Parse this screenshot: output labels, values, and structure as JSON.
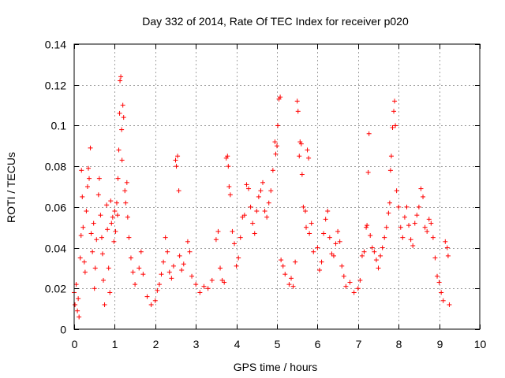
{
  "chart_data": {
    "type": "scatter",
    "title": "Day 332 of 2014, Rate Of TEC Index for receiver p020",
    "xlabel": "GPS time / hours",
    "ylabel": "ROTI / TECUs",
    "xlim": [
      0,
      10
    ],
    "ylim": [
      0,
      0.14
    ],
    "x_ticks": [
      0,
      1,
      2,
      3,
      4,
      5,
      6,
      7,
      8,
      9,
      10
    ],
    "x_tick_labels": [
      "0",
      "1",
      "2",
      "3",
      "4",
      "5",
      "6",
      "7",
      "8",
      "9",
      "10"
    ],
    "y_ticks": [
      0,
      0.02,
      0.04,
      0.06,
      0.08,
      0.1,
      0.12,
      0.14
    ],
    "y_tick_labels": [
      "0",
      "0.02",
      "0.04",
      "0.06",
      "0.08",
      "0.1",
      "0.12",
      "0.14"
    ],
    "grid": true,
    "marker": "+",
    "color": "#ff0000",
    "series": [
      {
        "name": "ROTI",
        "points": [
          [
            0.0,
            0.018
          ],
          [
            0.02,
            0.012
          ],
          [
            0.05,
            0.022
          ],
          [
            0.08,
            0.009
          ],
          [
            0.1,
            0.015
          ],
          [
            0.12,
            0.006
          ],
          [
            0.15,
            0.035
          ],
          [
            0.17,
            0.046
          ],
          [
            0.18,
            0.078
          ],
          [
            0.2,
            0.065
          ],
          [
            0.22,
            0.05
          ],
          [
            0.25,
            0.033
          ],
          [
            0.27,
            0.028
          ],
          [
            0.3,
            0.058
          ],
          [
            0.33,
            0.07
          ],
          [
            0.35,
            0.079
          ],
          [
            0.37,
            0.074
          ],
          [
            0.4,
            0.089
          ],
          [
            0.42,
            0.047
          ],
          [
            0.45,
            0.038
          ],
          [
            0.48,
            0.052
          ],
          [
            0.5,
            0.02
          ],
          [
            0.52,
            0.03
          ],
          [
            0.55,
            0.044
          ],
          [
            0.6,
            0.066
          ],
          [
            0.62,
            0.074
          ],
          [
            0.65,
            0.056
          ],
          [
            0.68,
            0.045
          ],
          [
            0.7,
            0.037
          ],
          [
            0.72,
            0.024
          ],
          [
            0.75,
            0.012
          ],
          [
            0.8,
            0.061
          ],
          [
            0.82,
            0.049
          ],
          [
            0.85,
            0.03
          ],
          [
            0.88,
            0.018
          ],
          [
            0.9,
            0.063
          ],
          [
            0.92,
            0.052
          ],
          [
            0.95,
            0.055
          ],
          [
            0.98,
            0.043
          ],
          [
            1.0,
            0.058
          ],
          [
            1.02,
            0.048
          ],
          [
            1.05,
            0.062
          ],
          [
            1.07,
            0.056
          ],
          [
            1.08,
            0.074
          ],
          [
            1.1,
            0.088
          ],
          [
            1.12,
            0.106
          ],
          [
            1.13,
            0.122
          ],
          [
            1.15,
            0.124
          ],
          [
            1.17,
            0.098
          ],
          [
            1.18,
            0.083
          ],
          [
            1.2,
            0.11
          ],
          [
            1.22,
            0.104
          ],
          [
            1.25,
            0.068
          ],
          [
            1.27,
            0.062
          ],
          [
            1.3,
            0.072
          ],
          [
            1.32,
            0.055
          ],
          [
            1.35,
            0.045
          ],
          [
            1.4,
            0.035
          ],
          [
            1.45,
            0.028
          ],
          [
            1.5,
            0.022
          ],
          [
            1.6,
            0.03
          ],
          [
            1.65,
            0.038
          ],
          [
            1.7,
            0.027
          ],
          [
            1.8,
            0.016
          ],
          [
            1.9,
            0.012
          ],
          [
            2.0,
            0.014
          ],
          [
            2.05,
            0.019
          ],
          [
            2.1,
            0.022
          ],
          [
            2.15,
            0.027
          ],
          [
            2.2,
            0.033
          ],
          [
            2.25,
            0.045
          ],
          [
            2.3,
            0.038
          ],
          [
            2.35,
            0.028
          ],
          [
            2.4,
            0.025
          ],
          [
            2.45,
            0.031
          ],
          [
            2.5,
            0.083
          ],
          [
            2.52,
            0.08
          ],
          [
            2.55,
            0.085
          ],
          [
            2.58,
            0.068
          ],
          [
            2.6,
            0.036
          ],
          [
            2.65,
            0.029
          ],
          [
            2.7,
            0.032
          ],
          [
            2.8,
            0.043
          ],
          [
            2.85,
            0.038
          ],
          [
            2.9,
            0.026
          ],
          [
            3.0,
            0.022
          ],
          [
            3.1,
            0.018
          ],
          [
            3.2,
            0.021
          ],
          [
            3.3,
            0.02
          ],
          [
            3.4,
            0.024
          ],
          [
            3.5,
            0.044
          ],
          [
            3.55,
            0.048
          ],
          [
            3.6,
            0.03
          ],
          [
            3.65,
            0.024
          ],
          [
            3.7,
            0.023
          ],
          [
            3.75,
            0.084
          ],
          [
            3.78,
            0.085
          ],
          [
            3.8,
            0.08
          ],
          [
            3.82,
            0.07
          ],
          [
            3.85,
            0.066
          ],
          [
            3.9,
            0.048
          ],
          [
            3.95,
            0.042
          ],
          [
            4.0,
            0.031
          ],
          [
            4.05,
            0.035
          ],
          [
            4.1,
            0.045
          ],
          [
            4.15,
            0.055
          ],
          [
            4.2,
            0.056
          ],
          [
            4.25,
            0.071
          ],
          [
            4.3,
            0.069
          ],
          [
            4.35,
            0.06
          ],
          [
            4.4,
            0.052
          ],
          [
            4.45,
            0.047
          ],
          [
            4.5,
            0.058
          ],
          [
            4.55,
            0.065
          ],
          [
            4.6,
            0.068
          ],
          [
            4.65,
            0.072
          ],
          [
            4.7,
            0.058
          ],
          [
            4.75,
            0.055
          ],
          [
            4.8,
            0.062
          ],
          [
            4.85,
            0.068
          ],
          [
            4.9,
            0.078
          ],
          [
            4.95,
            0.092
          ],
          [
            4.97,
            0.086
          ],
          [
            5.0,
            0.09
          ],
          [
            5.02,
            0.1
          ],
          [
            5.05,
            0.113
          ],
          [
            5.08,
            0.114
          ],
          [
            5.1,
            0.034
          ],
          [
            5.15,
            0.031
          ],
          [
            5.2,
            0.027
          ],
          [
            5.3,
            0.022
          ],
          [
            5.35,
            0.025
          ],
          [
            5.4,
            0.021
          ],
          [
            5.45,
            0.033
          ],
          [
            5.5,
            0.112
          ],
          [
            5.52,
            0.107
          ],
          [
            5.55,
            0.085
          ],
          [
            5.57,
            0.092
          ],
          [
            5.6,
            0.091
          ],
          [
            5.62,
            0.076
          ],
          [
            5.65,
            0.06
          ],
          [
            5.7,
            0.058
          ],
          [
            5.72,
            0.05
          ],
          [
            5.75,
            0.088
          ],
          [
            5.78,
            0.084
          ],
          [
            5.8,
            0.047
          ],
          [
            5.85,
            0.052
          ],
          [
            5.9,
            0.038
          ],
          [
            6.0,
            0.04
          ],
          [
            6.05,
            0.029
          ],
          [
            6.1,
            0.033
          ],
          [
            6.15,
            0.047
          ],
          [
            6.2,
            0.054
          ],
          [
            6.25,
            0.058
          ],
          [
            6.3,
            0.045
          ],
          [
            6.35,
            0.037
          ],
          [
            6.4,
            0.036
          ],
          [
            6.45,
            0.042
          ],
          [
            6.5,
            0.048
          ],
          [
            6.55,
            0.043
          ],
          [
            6.6,
            0.031
          ],
          [
            6.65,
            0.026
          ],
          [
            6.7,
            0.021
          ],
          [
            6.8,
            0.023
          ],
          [
            6.9,
            0.018
          ],
          [
            7.0,
            0.02
          ],
          [
            7.05,
            0.024
          ],
          [
            7.1,
            0.036
          ],
          [
            7.15,
            0.038
          ],
          [
            7.2,
            0.05
          ],
          [
            7.22,
            0.051
          ],
          [
            7.25,
            0.077
          ],
          [
            7.27,
            0.096
          ],
          [
            7.3,
            0.046
          ],
          [
            7.35,
            0.04
          ],
          [
            7.4,
            0.038
          ],
          [
            7.45,
            0.034
          ],
          [
            7.5,
            0.03
          ],
          [
            7.55,
            0.036
          ],
          [
            7.6,
            0.04
          ],
          [
            7.65,
            0.045
          ],
          [
            7.7,
            0.05
          ],
          [
            7.75,
            0.057
          ],
          [
            7.78,
            0.062
          ],
          [
            7.8,
            0.078
          ],
          [
            7.82,
            0.085
          ],
          [
            7.85,
            0.099
          ],
          [
            7.88,
            0.107
          ],
          [
            7.9,
            0.112
          ],
          [
            7.92,
            0.1
          ],
          [
            7.95,
            0.068
          ],
          [
            8.0,
            0.06
          ],
          [
            8.05,
            0.05
          ],
          [
            8.1,
            0.045
          ],
          [
            8.15,
            0.055
          ],
          [
            8.2,
            0.06
          ],
          [
            8.25,
            0.051
          ],
          [
            8.3,
            0.044
          ],
          [
            8.35,
            0.041
          ],
          [
            8.4,
            0.052
          ],
          [
            8.45,
            0.056
          ],
          [
            8.5,
            0.06
          ],
          [
            8.55,
            0.069
          ],
          [
            8.6,
            0.065
          ],
          [
            8.65,
            0.05
          ],
          [
            8.7,
            0.048
          ],
          [
            8.75,
            0.054
          ],
          [
            8.8,
            0.052
          ],
          [
            8.85,
            0.045
          ],
          [
            8.9,
            0.035
          ],
          [
            8.95,
            0.026
          ],
          [
            9.0,
            0.023
          ],
          [
            9.05,
            0.018
          ],
          [
            9.1,
            0.014
          ],
          [
            9.15,
            0.043
          ],
          [
            9.2,
            0.04
          ],
          [
            9.22,
            0.036
          ],
          [
            9.25,
            0.012
          ]
        ]
      }
    ]
  }
}
